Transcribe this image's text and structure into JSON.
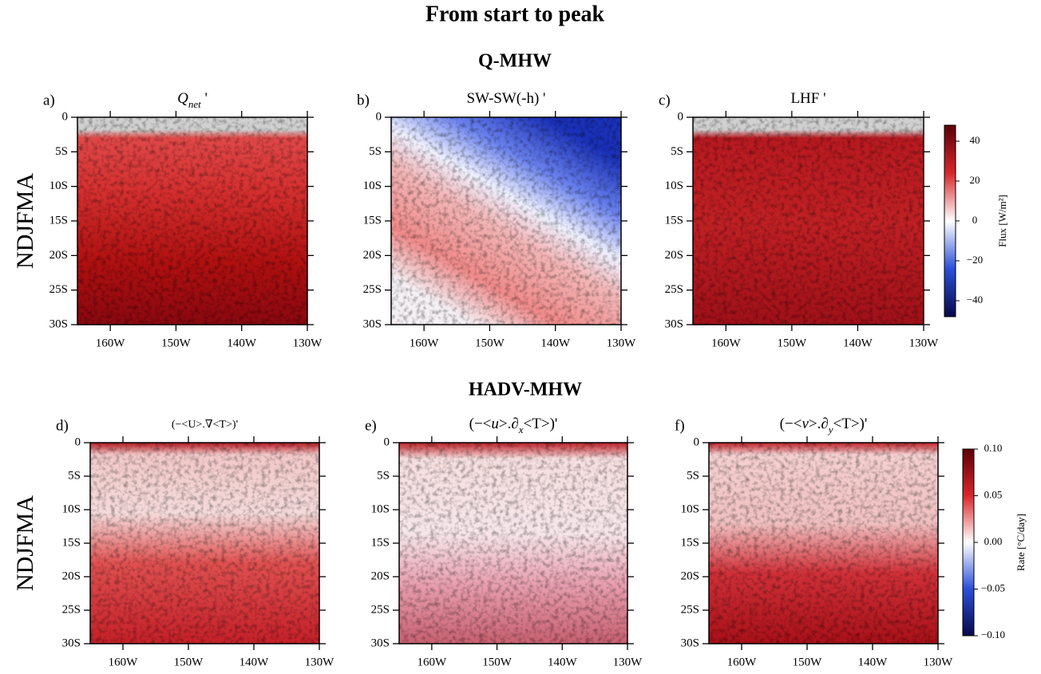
{
  "title": "From start to peak",
  "section_titles": [
    "Q-MHW",
    "HADV-MHW"
  ],
  "row_labels": [
    "NDJFMA",
    "NDJFMA"
  ],
  "colorbars": [
    {
      "label": "Flux [W/m²]",
      "clim": [
        -48,
        48
      ],
      "colors": [
        "#08084a",
        "#2a4fd8",
        "#ffffff",
        "#d8262a",
        "#5c0008"
      ],
      "ticks": [
        40,
        20,
        0,
        {
          "value": -20,
          "label": "−20"
        },
        {
          "value": -40,
          "label": "−40"
        }
      ]
    },
    {
      "label": "Rate [°C/day]",
      "clim": [
        -0.1,
        0.1
      ],
      "colors": [
        "#08084a",
        "#2a4fd8",
        "#ffffff",
        "#d8262a",
        "#5c0008"
      ],
      "ticks": [
        {
          "value": 0.1,
          "label": "0.10"
        },
        {
          "value": 0.05,
          "label": "0.05"
        },
        {
          "value": 0,
          "label": "0.00"
        },
        {
          "value": -0.05,
          "label": "−0.05"
        },
        {
          "value": -0.1,
          "label": "−0.10"
        }
      ]
    }
  ],
  "chart_data": [
    {
      "type": "map",
      "panel": "a)",
      "title_parts": [
        {
          "text": "Q",
          "style": "italic"
        },
        {
          "text": "net",
          "style": "sub"
        },
        {
          "text": " '",
          "style": "normal"
        }
      ],
      "xlim": [
        -165,
        -130
      ],
      "ylim": [
        -30,
        0
      ],
      "xticks": [
        {
          "value": -160,
          "label": "160W"
        },
        {
          "value": -150,
          "label": "150W"
        },
        {
          "value": -140,
          "label": "140W"
        },
        {
          "value": -130,
          "label": "130W"
        }
      ],
      "yticks": [
        0,
        {
          "value": -5,
          "label": "5S"
        },
        {
          "value": -10,
          "label": "10S"
        },
        {
          "value": -15,
          "label": "15S"
        },
        {
          "value": -20,
          "label": "20S"
        },
        {
          "value": -25,
          "label": "25S"
        },
        {
          "value": -30,
          "label": "30S"
        }
      ]
    },
    {
      "type": "map",
      "panel": "b)",
      "title_parts": [
        {
          "text": "SW-SW(-h) '",
          "style": "normal"
        }
      ],
      "xlim": [
        -165,
        -130
      ],
      "ylim": [
        -30,
        0
      ],
      "xticks": [
        {
          "value": -160,
          "label": "160W"
        },
        {
          "value": -150,
          "label": "150W"
        },
        {
          "value": -140,
          "label": "140W"
        },
        {
          "value": -130,
          "label": "130W"
        }
      ],
      "yticks": [
        0,
        {
          "value": -5,
          "label": "5S"
        },
        {
          "value": -10,
          "label": "10S"
        },
        {
          "value": -15,
          "label": "15S"
        },
        {
          "value": -20,
          "label": "20S"
        },
        {
          "value": -25,
          "label": "25S"
        },
        {
          "value": -30,
          "label": "30S"
        }
      ]
    },
    {
      "type": "map",
      "panel": "c)",
      "title_parts": [
        {
          "text": "LHF '",
          "style": "normal"
        }
      ],
      "xlim": [
        -165,
        -130
      ],
      "ylim": [
        -30,
        0
      ],
      "xticks": [
        {
          "value": -160,
          "label": "160W"
        },
        {
          "value": -150,
          "label": "150W"
        },
        {
          "value": -140,
          "label": "140W"
        },
        {
          "value": -130,
          "label": "130W"
        }
      ],
      "yticks": [
        0,
        {
          "value": -5,
          "label": "5S"
        },
        {
          "value": -10,
          "label": "10S"
        },
        {
          "value": -15,
          "label": "15S"
        },
        {
          "value": -20,
          "label": "20S"
        },
        {
          "value": -25,
          "label": "25S"
        },
        {
          "value": -30,
          "label": "30S"
        }
      ]
    },
    {
      "type": "map",
      "panel": "d)",
      "title_parts": [
        {
          "text": "(−<U>.∇<T>)'",
          "style": "small"
        }
      ],
      "xlim": [
        -165,
        -130
      ],
      "ylim": [
        -30,
        0
      ],
      "xticks": [
        {
          "value": -160,
          "label": "160W"
        },
        {
          "value": -150,
          "label": "150W"
        },
        {
          "value": -140,
          "label": "140W"
        },
        {
          "value": -130,
          "label": "130W"
        }
      ],
      "yticks": [
        0,
        {
          "value": -5,
          "label": "5S"
        },
        {
          "value": -10,
          "label": "10S"
        },
        {
          "value": -15,
          "label": "15S"
        },
        {
          "value": -20,
          "label": "20S"
        },
        {
          "value": -25,
          "label": "25S"
        },
        {
          "value": -30,
          "label": "30S"
        }
      ]
    },
    {
      "type": "map",
      "panel": "e)",
      "title_parts": [
        {
          "text": "(−<",
          "style": "normal"
        },
        {
          "text": "u",
          "style": "italic"
        },
        {
          "text": ">.∂",
          "style": "normal"
        },
        {
          "text": "x",
          "style": "sub"
        },
        {
          "text": "<T>)'",
          "style": "normal"
        }
      ],
      "xlim": [
        -165,
        -130
      ],
      "ylim": [
        -30,
        0
      ],
      "xticks": [
        {
          "value": -160,
          "label": "160W"
        },
        {
          "value": -150,
          "label": "150W"
        },
        {
          "value": -140,
          "label": "140W"
        },
        {
          "value": -130,
          "label": "130W"
        }
      ],
      "yticks": [
        0,
        {
          "value": -5,
          "label": "5S"
        },
        {
          "value": -10,
          "label": "10S"
        },
        {
          "value": -15,
          "label": "15S"
        },
        {
          "value": -20,
          "label": "20S"
        },
        {
          "value": -25,
          "label": "25S"
        },
        {
          "value": -30,
          "label": "30S"
        }
      ]
    },
    {
      "type": "map",
      "panel": "f)",
      "title_parts": [
        {
          "text": "(−<",
          "style": "normal"
        },
        {
          "text": "v",
          "style": "italic"
        },
        {
          "text": ">.∂",
          "style": "normal"
        },
        {
          "text": "y",
          "style": "sub"
        },
        {
          "text": "<T>)'",
          "style": "normal"
        }
      ],
      "xlim": [
        -165,
        -130
      ],
      "ylim": [
        -30,
        0
      ],
      "xticks": [
        {
          "value": -160,
          "label": "160W"
        },
        {
          "value": -150,
          "label": "150W"
        },
        {
          "value": -140,
          "label": "140W"
        },
        {
          "value": -130,
          "label": "130W"
        }
      ],
      "yticks": [
        0,
        {
          "value": -5,
          "label": "5S"
        },
        {
          "value": -10,
          "label": "10S"
        },
        {
          "value": -15,
          "label": "15S"
        },
        {
          "value": -20,
          "label": "20S"
        },
        {
          "value": -25,
          "label": "25S"
        },
        {
          "value": -30,
          "label": "30S"
        }
      ]
    }
  ]
}
